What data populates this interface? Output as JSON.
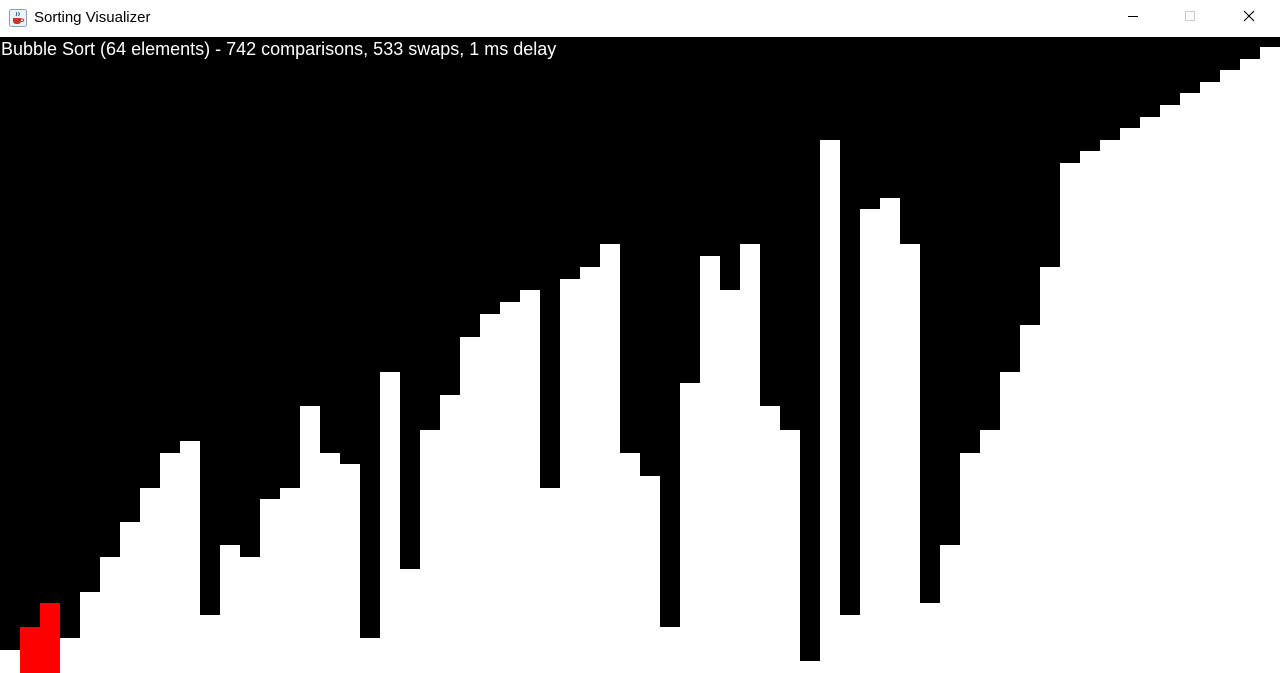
{
  "window": {
    "title": "Sorting Visualizer",
    "icon": "java-cup-icon",
    "controls": [
      "minimize-icon",
      "maximize-icon",
      "close-icon"
    ]
  },
  "status": {
    "text": "Bubble Sort (64 elements) - 742 comparisons, 533 swaps, 1 ms delay"
  },
  "visualization": {
    "algorithm": "Bubble Sort",
    "element_count": 64,
    "values": [
      2,
      4,
      6,
      3,
      7,
      10,
      13,
      16,
      19,
      20,
      5,
      11,
      10,
      15,
      16,
      23,
      19,
      18,
      3,
      26,
      9,
      21,
      24,
      29,
      31,
      32,
      33,
      16,
      34,
      35,
      37,
      19,
      17,
      4,
      25,
      36,
      33,
      37,
      23,
      21,
      1,
      46,
      5,
      40,
      41,
      37,
      6,
      11,
      19,
      21,
      26,
      30,
      35,
      44,
      45,
      46,
      47,
      48,
      49,
      50,
      51,
      52,
      53,
      54
    ],
    "max_value": 54,
    "highlighted_indices": [
      1,
      2
    ],
    "colors": {
      "background": "#000000",
      "bar": "#ffffff",
      "highlight": "#ff0000"
    }
  }
}
